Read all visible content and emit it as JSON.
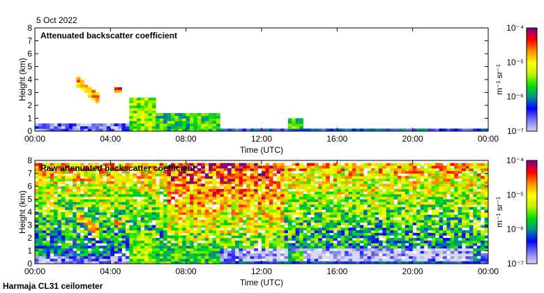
{
  "date": "5 Oct 2022",
  "footer": "Harmaja CL31 ceilometer",
  "chart_data": [
    {
      "type": "heatmap",
      "title": "Attenuated backscatter coefficient",
      "xlabel": "Time (UTC)",
      "ylabel": "Height (km)",
      "xlim": [
        0,
        24
      ],
      "ylim": [
        0,
        8
      ],
      "xticks": [
        "00:00",
        "04:00",
        "08:00",
        "12:00",
        "16:00",
        "20:00",
        "00:00"
      ],
      "yticks": [
        "0",
        "1",
        "2",
        "3",
        "4",
        "5",
        "6",
        "7",
        "8"
      ],
      "noise": false,
      "features": [
        {
          "t0": 0,
          "t1": 5,
          "h0": 0,
          "h1": 0.5,
          "log": -6.7
        },
        {
          "t0": 2,
          "t1": 3.3,
          "h0": 3.6,
          "h1": 4.3,
          "h0e": 1.9,
          "h1e": 2.7,
          "log": -4.8
        },
        {
          "t0": 4.1,
          "t1": 4.5,
          "h0": 3.0,
          "h1": 3.3,
          "log": -4.5
        },
        {
          "t0": 5,
          "t1": 6.3,
          "h0": 0,
          "h1": 2.5,
          "log": -5.4
        },
        {
          "t0": 6.3,
          "t1": 9.6,
          "h0": 0,
          "h1": 1.4,
          "log": -5.7
        },
        {
          "t0": 9.6,
          "t1": 24,
          "h0": 0,
          "h1": 0.2,
          "log": -6.3
        },
        {
          "t0": 13.3,
          "t1": 14.1,
          "h0": 0.2,
          "h1": 0.9,
          "log": -5.6
        }
      ]
    },
    {
      "type": "heatmap",
      "title": "Raw attenuated backscatter coefficient",
      "xlabel": "Time (UTC)",
      "ylabel": "Height (km)",
      "xlim": [
        0,
        24
      ],
      "ylim": [
        0,
        8
      ],
      "xticks": [
        "00:00",
        "04:00",
        "08:00",
        "12:00",
        "16:00",
        "20:00",
        "00:00"
      ],
      "yticks": [
        "0",
        "1",
        "2",
        "3",
        "4",
        "5",
        "6",
        "7",
        "8"
      ],
      "noise": true,
      "features": [
        {
          "t0": 0,
          "t1": 5,
          "h0": 0,
          "h1": 0.5,
          "log": -6.7
        },
        {
          "t0": 2,
          "t1": 3.3,
          "h0": 3.6,
          "h1": 4.3,
          "h0e": 1.9,
          "h1e": 2.7,
          "log": -4.8
        },
        {
          "t0": 4.1,
          "t1": 4.5,
          "h0": 3.0,
          "h1": 3.3,
          "log": -4.5
        },
        {
          "t0": 5,
          "t1": 6.3,
          "h0": 0,
          "h1": 2.5,
          "log": -5.4
        },
        {
          "t0": 6.3,
          "t1": 9.6,
          "h0": 0,
          "h1": 1.4,
          "log": -5.7
        },
        {
          "t0": 9.6,
          "t1": 24,
          "h0": 0,
          "h1": 0.2,
          "log": -6.3
        },
        {
          "t0": 13.3,
          "t1": 14.1,
          "h0": 0.2,
          "h1": 0.9,
          "log": -5.6
        }
      ]
    }
  ],
  "colorbar": {
    "label": "m⁻¹ sr⁻¹",
    "ticks": [
      "10⁻⁴",
      "10⁻⁵",
      "10⁻⁶",
      "10⁻⁷"
    ],
    "range_log10": [
      -7,
      -4
    ],
    "colors": [
      "#d8d8ee",
      "#7878f0",
      "#0000ff",
      "#009090",
      "#00e000",
      "#c0f000",
      "#ffff00",
      "#ff9000",
      "#ff0000",
      "#800080"
    ]
  }
}
